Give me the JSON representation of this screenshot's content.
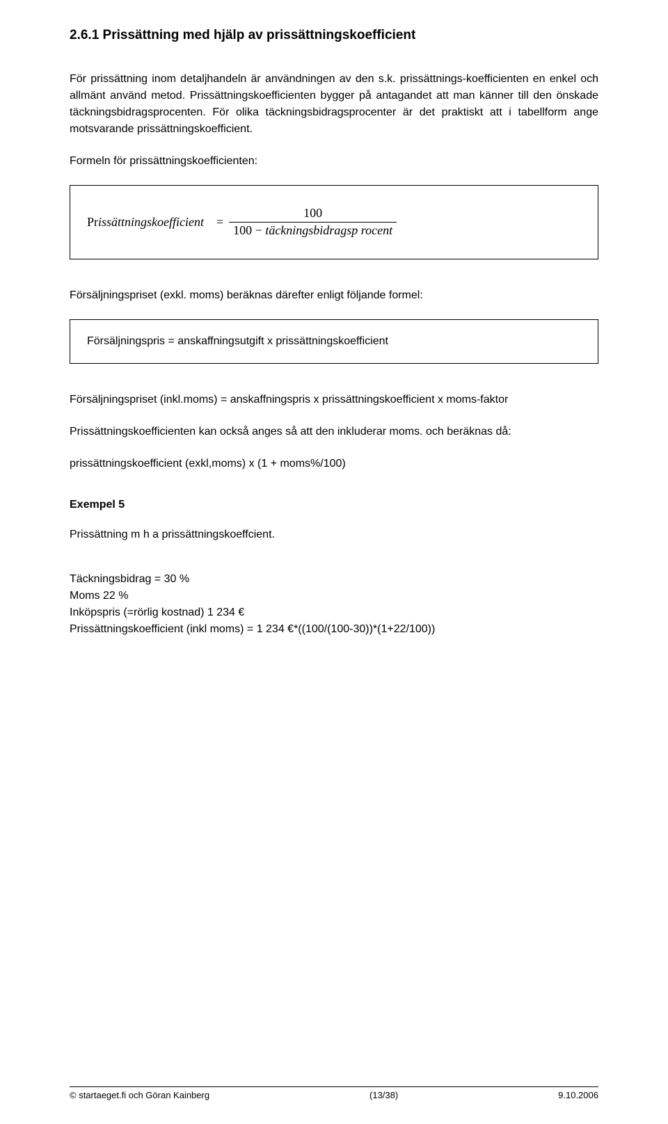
{
  "heading": "2.6.1 Prissättning med hjälp av prissättningskoefficient",
  "p1": "För prissättning inom detaljhandeln är användningen av den s.k. prissättnings-koefficienten en enkel och allmänt använd metod. Prissättningskoefficienten bygger på antagandet att man känner till den önskade täckningsbidragsprocenten. För olika täckningsbidragsprocenter är det praktiskt att i tabellform ange motsvarande prissättningskoefficient.",
  "p2": "Formeln för prissättningskoefficienten:",
  "formula1": {
    "lhs_pr": "Pr",
    "lhs_rest": "issättningskoefficient",
    "equals": "=",
    "numerator": "100",
    "den_prefix": "100 − ",
    "den_var": "täckningsbidragsp rocent"
  },
  "p3": "Försäljningspriset (exkl. moms) beräknas därefter enligt följande formel:",
  "formula2": "Försäljningspris = anskaffningsutgift x prissättningskoefficient",
  "p4": "Försäljningspriset (inkl.moms) = anskaffningspris x prissättningskoefficient x moms-faktor",
  "p5": "Prissättningskoefficienten kan också anges så att den inkluderar moms. och beräknas då:",
  "p6": "prissättningskoefficient (exkl,moms) x (1 + moms%/100)",
  "example_heading": "Exempel 5",
  "p7": "Prissättning m h a prissättningskoeffcient.",
  "p8a": "Täckningsbidrag = 30 %",
  "p8b": "Moms 22 %",
  "p8c": "Inköpspris (=rörlig kostnad) 1 234 €",
  "p8d": "Prissättningskoefficient (inkl moms) = 1 234 €*((100/(100-30))*(1+22/100))",
  "footer": {
    "left": "© startaeget.fi och Göran Kainberg",
    "center": "(13/38)",
    "right": "9.10.2006"
  }
}
